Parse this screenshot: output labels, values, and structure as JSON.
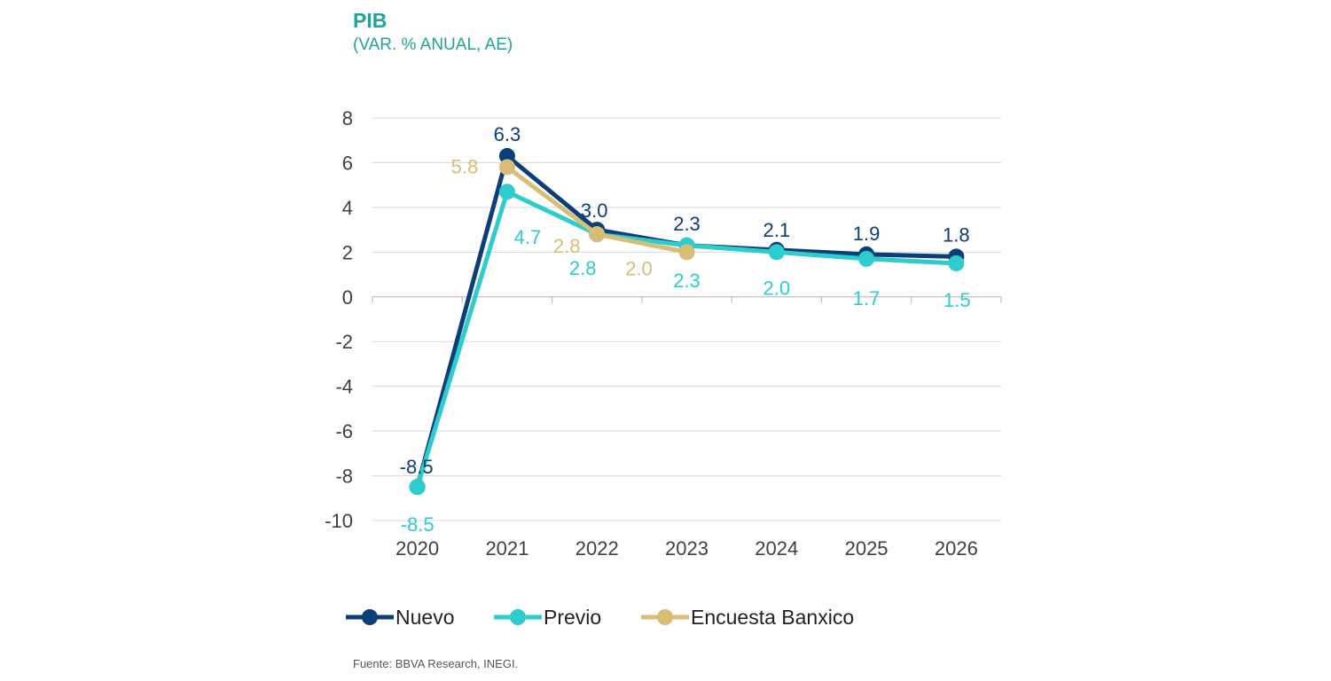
{
  "header": {
    "title": "PIB",
    "subtitle": "(VAR. % ANUAL, AE)"
  },
  "footer": {
    "source": "Fuente: BBVA Research, INEGI."
  },
  "colors": {
    "nuevo": "#0c3e7a",
    "previo": "#2dcccd",
    "banxico": "#d8be75",
    "grid": "#d9d9d9",
    "title": "#1fa39a"
  },
  "chart_data": {
    "type": "line",
    "title": "PIB",
    "subtitle": "(VAR. % ANUAL, AE)",
    "xlabel": "",
    "ylabel": "",
    "x": [
      "2020",
      "2021",
      "2022",
      "2023",
      "2024",
      "2025",
      "2026"
    ],
    "ylim": [
      -10,
      8
    ],
    "yticks": [
      8,
      6,
      4,
      2,
      0,
      -2,
      -4,
      -6,
      -8,
      -10
    ],
    "ytick_labels": [
      "8",
      "6",
      "4",
      "2",
      "0",
      "-2",
      "-4",
      "-6",
      "-8",
      "-10"
    ],
    "grid": true,
    "legend_position": "bottom",
    "series": [
      {
        "name": "Nuevo",
        "key": "nuevo",
        "values": [
          -8.5,
          6.3,
          3.0,
          2.3,
          2.1,
          1.9,
          1.8
        ],
        "labels": [
          "-8.5",
          "6.3",
          "3.0",
          "2.3",
          "2.1",
          "1.9",
          "1.8"
        ]
      },
      {
        "name": "Previo",
        "key": "previo",
        "values": [
          -8.5,
          4.7,
          2.8,
          2.3,
          2.0,
          1.7,
          1.5
        ],
        "labels": [
          "-8.5",
          "4.7",
          "2.8",
          "2.3",
          "2.0",
          "1.7",
          "1.5"
        ]
      },
      {
        "name": "Encuesta Banxico",
        "key": "banxico",
        "values": [
          null,
          5.8,
          2.8,
          2.0,
          null,
          null,
          null
        ],
        "labels": [
          null,
          "5.8",
          "2.8",
          "2.0",
          null,
          null,
          null
        ]
      }
    ]
  }
}
